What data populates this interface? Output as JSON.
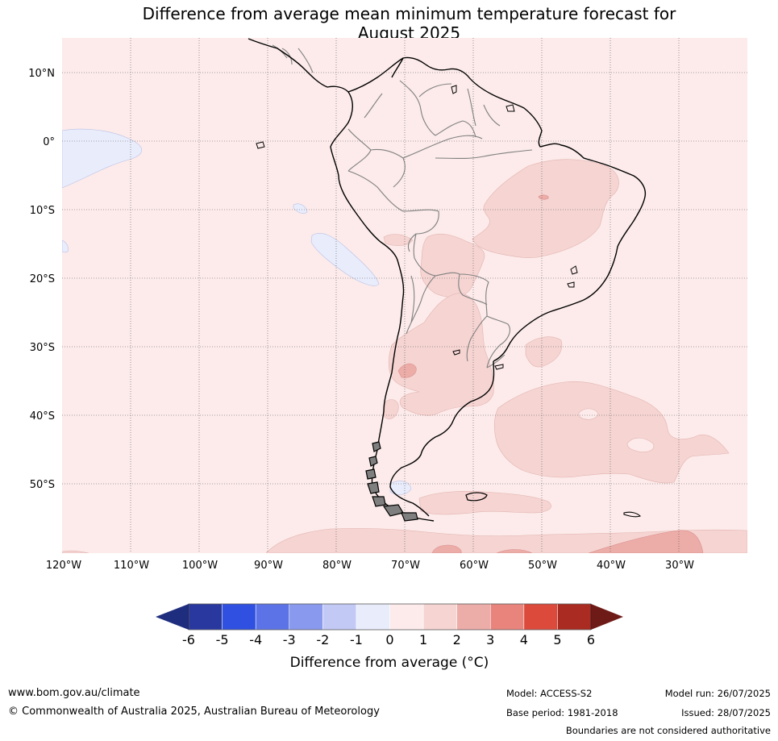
{
  "title": {
    "line1": "Difference from average mean minimum temperature forecast for",
    "line2": "August 2025"
  },
  "map": {
    "lat_labels": [
      "10°N",
      "0°",
      "10°S",
      "20°S",
      "30°S",
      "40°S",
      "50°S"
    ],
    "lon_labels": [
      "120°W",
      "110°W",
      "100°W",
      "90°W",
      "80°W",
      "70°W",
      "60°W",
      "50°W",
      "40°W",
      "30°W"
    ],
    "colors": {
      "background_0_to_1": "#fcebea",
      "anomaly_1_to_2": "#f5d4d2",
      "anomaly_2_to_3": "#ecaca8",
      "anomaly_minus1_to_0": "#e9ecfb",
      "coastline": "#000000",
      "borders": "#7f7f7f"
    }
  },
  "colorbar": {
    "ticks": [
      "-6",
      "-5",
      "-4",
      "-3",
      "-2",
      "-1",
      "0",
      "1",
      "2",
      "3",
      "4",
      "5",
      "6"
    ],
    "segment_colors": [
      "#28389f",
      "#2f50e0",
      "#5b73e6",
      "#8899ee",
      "#c2c9f4",
      "#e9ecfb",
      "#fcebea",
      "#f5d4d2",
      "#ecaca8",
      "#e8847b",
      "#dc4a3c",
      "#a92b21"
    ],
    "under_color": "#1e2d7e",
    "over_color": "#6e1a17",
    "label": "Difference from average (°C)"
  },
  "footer": {
    "url": "www.bom.gov.au/climate",
    "copyright": "© Commonwealth of Australia 2025, Australian Bureau of Meteorology",
    "model": "Model: ACCESS-S2",
    "base_period": "Base period: 1981-2018",
    "model_run": "Model run: 26/07/2025",
    "issued": "Issued: 28/07/2025",
    "disclaimer": "Boundaries are not considered authoritative"
  }
}
